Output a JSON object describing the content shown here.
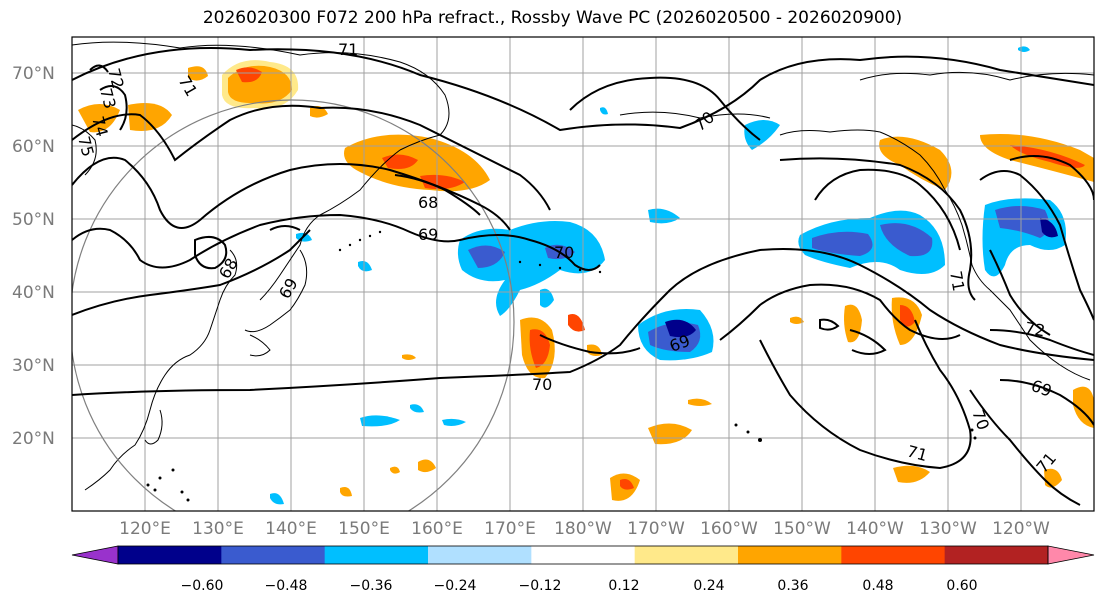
{
  "title": "2026020300 F072 200 hPa refract., Rossby Wave PC (2026020500 - 2026020900)",
  "lat_labels": [
    "70°N",
    "60°N",
    "50°N",
    "40°N",
    "30°N",
    "20°N"
  ],
  "lon_labels": [
    "120°E",
    "130°E",
    "140°E",
    "150°E",
    "160°E",
    "170°E",
    "180°W",
    "170°W",
    "160°W",
    "150°W",
    "140°W",
    "130°W",
    "120°W"
  ],
  "contour_labels": [
    "71",
    "72",
    "73",
    "74",
    "75",
    "71",
    "70",
    "68",
    "69",
    "70",
    "68",
    "69",
    "70",
    "69",
    "71",
    "70",
    "69",
    "72",
    "71",
    "71"
  ],
  "colorbar": {
    "tick_labels": [
      "−0.60",
      "−0.48",
      "−0.36",
      "−0.24",
      "−0.12",
      "0.12",
      "0.24",
      "0.36",
      "0.48",
      "0.60"
    ],
    "colors": [
      "#9932cc",
      "#00008b",
      "#3a5bcf",
      "#00bfff",
      "#b0e0ff",
      "#ffffff",
      "#ffe98a",
      "#ffa500",
      "#ff4500",
      "#b22222",
      "#ff88aa"
    ]
  },
  "colors": {
    "dark_blue": "#00008b",
    "blue": "#3a5bcf",
    "light_blue": "#00bfff",
    "pale_blue": "#b0e0ff",
    "yellow": "#ffe98a",
    "orange": "#ffa500",
    "red_orange": "#ff4500"
  }
}
